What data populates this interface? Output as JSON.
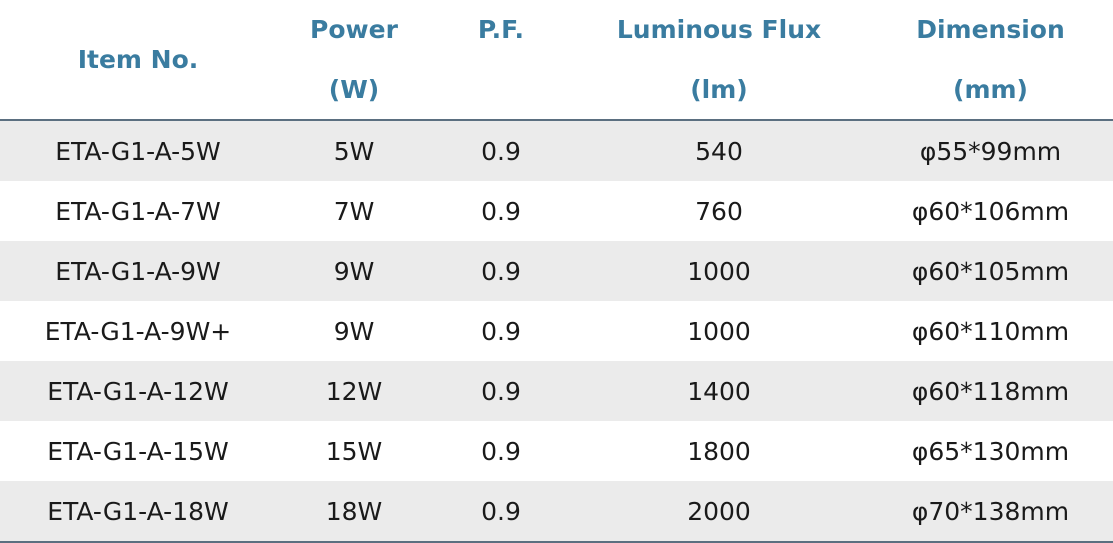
{
  "table": {
    "header": [
      [
        "Item No."
      ],
      [
        "Power",
        "(W)"
      ],
      [
        "P.F."
      ],
      [
        "Luminous Flux",
        "(lm)"
      ],
      [
        "Dimension",
        "(mm)"
      ]
    ],
    "rows": [
      [
        "ETA-G1-A-5W",
        "5W",
        "0.9",
        "540",
        "φ55*99mm"
      ],
      [
        "ETA-G1-A-7W",
        "7W",
        "0.9",
        "760",
        "φ60*106mm"
      ],
      [
        "ETA-G1-A-9W",
        "9W",
        "0.9",
        "1000",
        "φ60*105mm"
      ],
      [
        "ETA-G1-A-9W+",
        "9W",
        "0.9",
        "1000",
        "φ60*110mm"
      ],
      [
        "ETA-G1-A-12W",
        "12W",
        "0.9",
        "1400",
        "φ60*118mm"
      ],
      [
        "ETA-G1-A-15W",
        "15W",
        "0.9",
        "1800",
        "φ65*130mm"
      ],
      [
        "ETA-G1-A-18W",
        "18W",
        "0.9",
        "2000",
        "φ70*138mm"
      ]
    ]
  }
}
